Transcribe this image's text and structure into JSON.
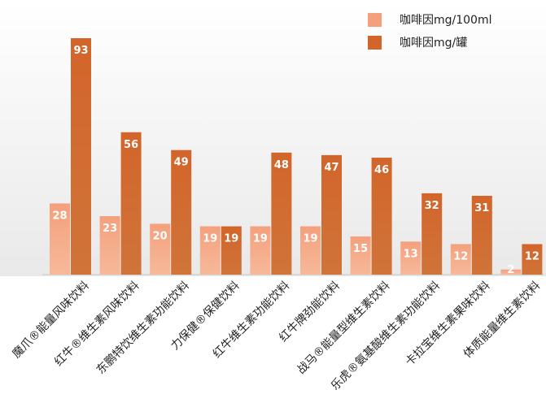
{
  "chart_data": {
    "type": "bar",
    "title": "",
    "xlabel": "",
    "ylabel": "",
    "ylim": [
      0,
      100
    ],
    "categories": [
      "魔爪®能量风味饮料",
      "红牛®维生素风味饮料",
      "东鹏特饮维生素功能饮料",
      "力保健®保健饮料",
      "红牛维生素功能饮料",
      "红牛牌劲能饮料",
      "战马®能量型维生素饮料",
      "乐虎®氨基酸维生素功能饮料",
      "卡拉宝维生素果味饮料",
      "体质能量维生素饮料"
    ],
    "series": [
      {
        "name": "咖啡因mg/100ml",
        "values": [
          28,
          23,
          20,
          19,
          19,
          19,
          15,
          13,
          12,
          2
        ],
        "color": "#f4a07c"
      },
      {
        "name": "咖啡因mg/罐",
        "values": [
          93,
          56,
          49,
          19,
          48,
          47,
          46,
          32,
          31,
          12
        ],
        "color": "#d2652a"
      }
    ],
    "legend_position": "top-right",
    "grid": false
  }
}
